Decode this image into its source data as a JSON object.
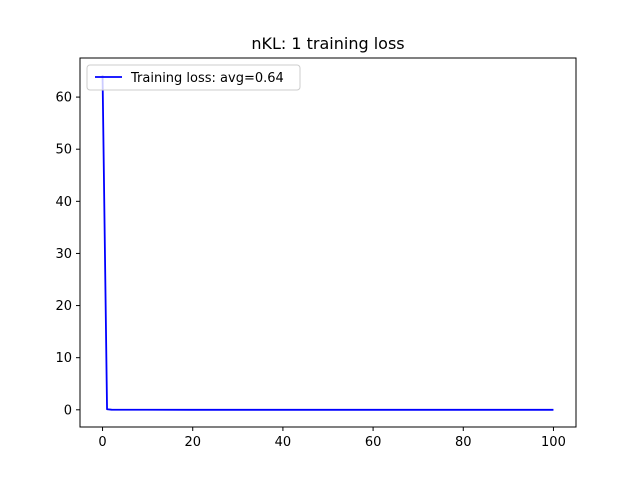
{
  "chart_data": {
    "type": "line",
    "title": "nKL: 1 training loss",
    "xlabel": "",
    "ylabel": "",
    "xlim": [
      -5,
      105
    ],
    "ylim": [
      -3.3,
      67.5
    ],
    "x_ticks": [
      0,
      20,
      40,
      60,
      80,
      100
    ],
    "y_ticks": [
      0,
      10,
      20,
      30,
      40,
      50,
      60
    ],
    "grid": false,
    "legend_placement": "top-left",
    "series": [
      {
        "name": "Training loss: avg=0.64",
        "color": "#0000ff",
        "x": [
          0,
          1,
          2,
          5,
          10,
          20,
          30,
          40,
          50,
          60,
          70,
          80,
          90,
          100
        ],
        "y": [
          64.2,
          0.1,
          0.02,
          0.01,
          0.01,
          0.0,
          0.0,
          0.0,
          0.0,
          0.0,
          0.0,
          0.0,
          0.0,
          0.0
        ]
      }
    ]
  }
}
